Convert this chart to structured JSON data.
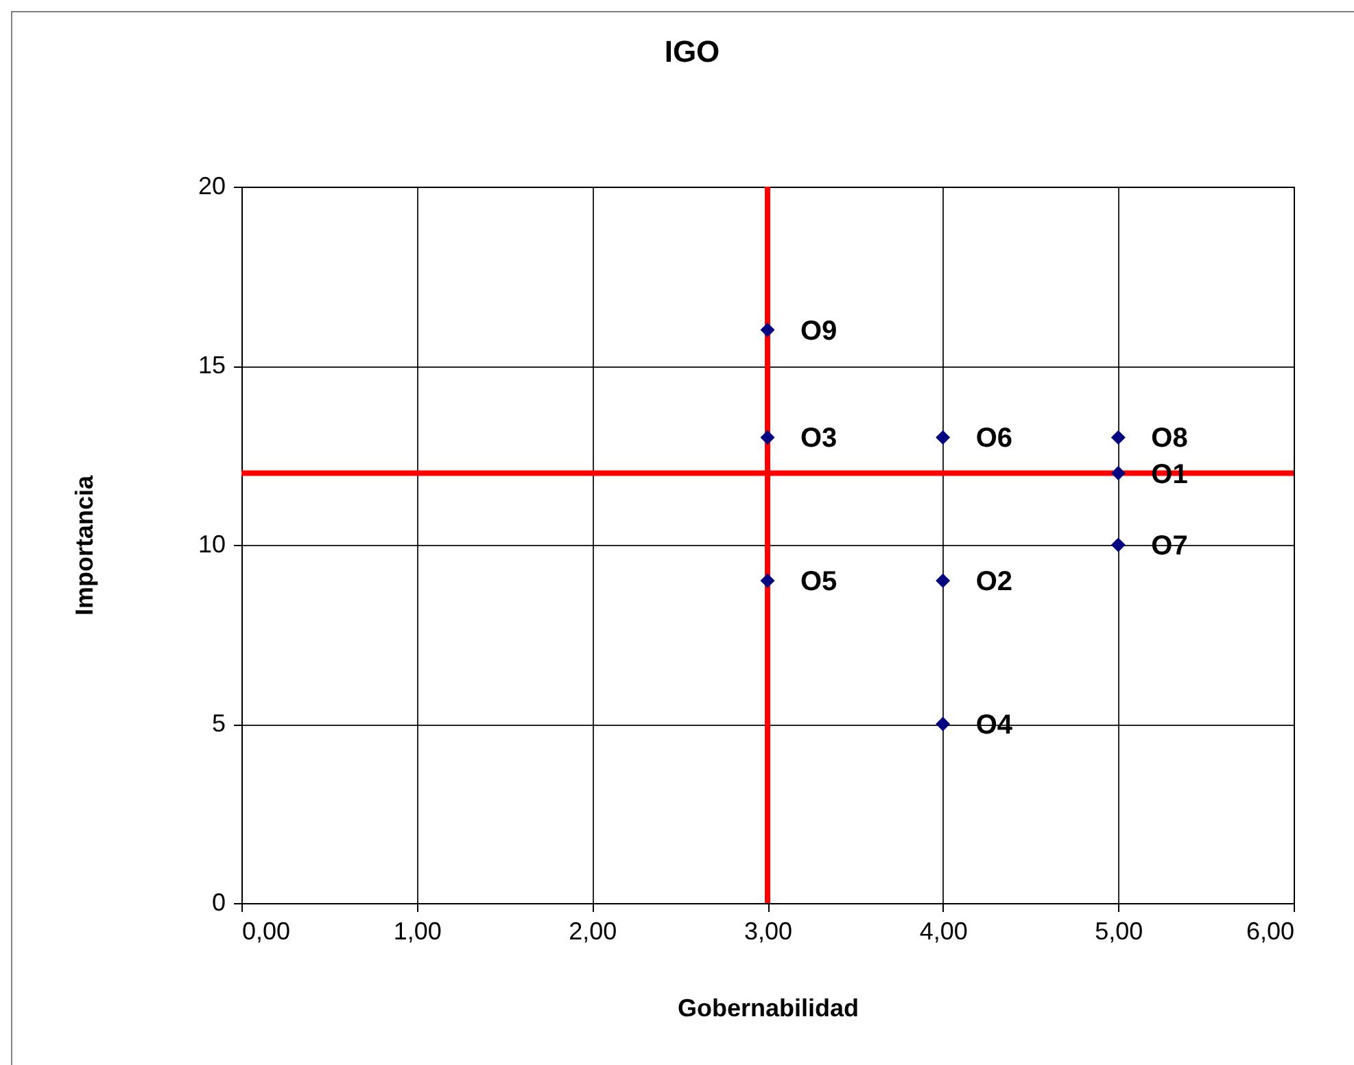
{
  "chart_data": {
    "type": "scatter",
    "title": "IGO",
    "xlabel": "Gobernabilidad",
    "ylabel": "Importancia",
    "x": [
      5,
      4,
      3,
      4,
      3,
      4,
      5,
      5,
      3
    ],
    "series": [
      {
        "color": "#000080",
        "values": [
          12,
          9,
          13,
          5,
          9,
          13,
          10,
          13,
          16
        ]
      }
    ],
    "xlim": [
      0,
      6
    ],
    "xticks": [
      {
        "value": 0,
        "label": "0,00"
      },
      {
        "value": 1,
        "label": "1,00"
      },
      {
        "value": 2,
        "label": "2,00"
      },
      {
        "value": 3,
        "label": "3,00"
      },
      {
        "value": 4,
        "label": "4,00"
      },
      {
        "value": 5,
        "label": "5,00"
      },
      {
        "value": 6,
        "label": "6,00"
      }
    ],
    "ylim": [
      0,
      20
    ],
    "yticks": [
      0,
      5,
      10,
      15,
      20
    ],
    "grid": true,
    "marker": "diamond",
    "ref_lines": [
      {
        "axis": "x",
        "value": 3,
        "color": "#ff0000"
      },
      {
        "axis": "y",
        "value": 12,
        "color": "#ff0000"
      }
    ],
    "annotations": [
      {
        "text": "O1",
        "x": 5,
        "y": 12
      },
      {
        "text": "O2",
        "x": 4,
        "y": 9
      },
      {
        "text": "O3",
        "x": 3,
        "y": 13
      },
      {
        "text": "O4",
        "x": 4,
        "y": 5
      },
      {
        "text": "O5",
        "x": 3,
        "y": 9
      },
      {
        "text": "O6",
        "x": 4,
        "y": 13
      },
      {
        "text": "O7",
        "x": 5,
        "y": 10
      },
      {
        "text": "O8",
        "x": 5,
        "y": 13
      },
      {
        "text": "O9",
        "x": 3,
        "y": 16
      }
    ]
  }
}
